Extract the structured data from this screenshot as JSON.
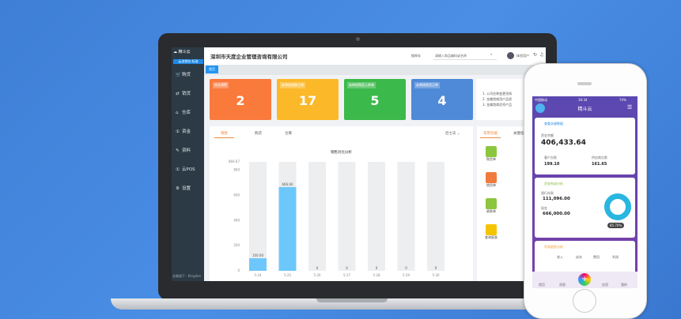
{
  "colors": {
    "background": "#4a8ee6",
    "sidebar": "#2c3a45",
    "accent": "#2196f3",
    "orange": "#fa7a3c",
    "yellow": "#fbb829",
    "green": "#3cb94b",
    "blue": "#4f8ad8",
    "bar": "#6ec7fb"
  },
  "app": {
    "logo_text": "精斗云",
    "logo_sub": "云进销存·标准",
    "company": "深圳市天度企业管理咨询有限公司",
    "search_scope": "搜库存",
    "search_placeholder": "请输入商品编码或名称",
    "user": "体验用户",
    "home_tab": "首页",
    "footer": "金蝶旗下 · Kingdee"
  },
  "sidebar": {
    "items": [
      {
        "label": "购货",
        "icon": "cart-icon"
      },
      {
        "label": "销货",
        "icon": "sale-icon"
      },
      {
        "label": "仓库",
        "icon": "warehouse-icon"
      },
      {
        "label": "资金",
        "icon": "money-icon"
      },
      {
        "label": "资料",
        "icon": "pen-icon"
      },
      {
        "label": "云POS",
        "icon": "pos-icon"
      },
      {
        "label": "设置",
        "icon": "gear-icon"
      }
    ]
  },
  "cards": [
    {
      "title": "库存预警",
      "value": "2"
    },
    {
      "title": "未审核销售订单",
      "value": "17"
    },
    {
      "title": "未审核购货入库单",
      "value": "5"
    },
    {
      "title": "未审核购货订单",
      "value": "4"
    }
  ],
  "notice": [
    "1. 公司名称变更须知",
    "2. 金蝶首席用户品质",
    "3. 金蝶首席优秀产品"
  ],
  "chart_tabs": [
    "销售",
    "购货",
    "仓库"
  ],
  "range_select": "近七天",
  "chart_data": {
    "type": "bar",
    "title": "销售对比分析",
    "categories": [
      "5-24",
      "5-25",
      "5-26",
      "5-27",
      "5-28",
      "5-29",
      "5-30"
    ],
    "values": [
      100.0,
      666.6,
      0,
      0,
      0,
      0,
      0
    ],
    "value_labels": [
      "100.00",
      "666.60",
      "0",
      "0",
      "0",
      "0",
      "0"
    ],
    "yticks": [
      0,
      200,
      400,
      600,
      800
    ],
    "ymax_label": "866.67",
    "ylim": [
      0,
      866.67
    ]
  },
  "functions": {
    "tabs": [
      "常用功能",
      "关键指标"
    ],
    "items": [
      {
        "label": "购货单",
        "color": "#8cc63f"
      },
      {
        "label": "销货单",
        "color": "#f07b3c"
      },
      {
        "label": "收款单",
        "color": "#8cc63f"
      },
      {
        "label": "查询报表",
        "color": "#f5c400"
      }
    ]
  },
  "phone": {
    "status_carrier": "中国移动",
    "status_time": "16:34",
    "status_battery": "74%",
    "title": "精斗云",
    "fund": {
      "title": "查看关键数据",
      "balance_label": "资金余额",
      "balance": "406,433.64",
      "customer_debt_label": "客户欠款",
      "customer_debt": "199.10",
      "supplier_debt_label": "供应商欠款",
      "supplier_debt": "161.65"
    },
    "composition": {
      "title": "资金构成分析",
      "bank_label": "银行存款",
      "bank": "111,096.00",
      "cash_label": "现金",
      "cash": "666,000.00",
      "percent": "85.70%",
      "donut_fraction": 0.857
    },
    "profit": {
      "title": "利润趋势分析",
      "legend": [
        "收入",
        "成本",
        "费用",
        "利润"
      ]
    },
    "tabbar": [
      "首页",
      "消息",
      "",
      "应用",
      "我的"
    ]
  }
}
